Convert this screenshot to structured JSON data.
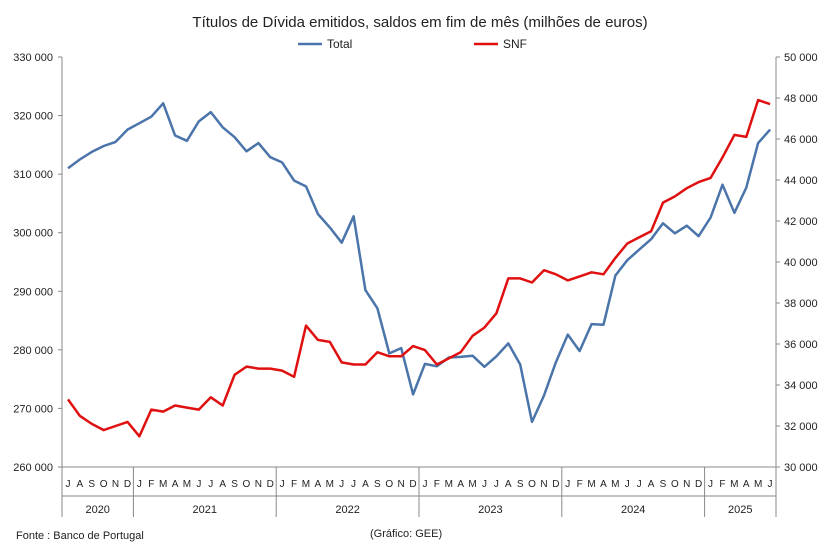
{
  "chart_data": {
    "type": "line",
    "title": "Títulos de Dívida emitidos, saldos em fim de mês  (milhões de euros)",
    "source": "Fonte : Banco de Portugal",
    "credit": "(Gráfico: GEE)",
    "left_axis": {
      "min": 260000,
      "max": 330000,
      "step": 10000,
      "tick_labels": [
        "260 000",
        "270 000",
        "280 000",
        "290 000",
        "300 000",
        "310 000",
        "320 000",
        "330 000"
      ]
    },
    "right_axis": {
      "min": 30000,
      "max": 50000,
      "step": 2000,
      "tick_labels": [
        "30 000",
        "32 000",
        "34 000",
        "36 000",
        "38 000",
        "40 000",
        "42 000",
        "44 000",
        "46 000",
        "48 000",
        "50 000"
      ]
    },
    "months": [
      "J",
      "A",
      "S",
      "O",
      "N",
      "D",
      "J",
      "F",
      "M",
      "A",
      "M",
      "J",
      "J",
      "A",
      "S",
      "O",
      "N",
      "D",
      "J",
      "F",
      "M",
      "A",
      "M",
      "J",
      "J",
      "A",
      "S",
      "O",
      "N",
      "D",
      "J",
      "F",
      "M",
      "A",
      "M",
      "J",
      "J",
      "A",
      "S",
      "O",
      "N",
      "D",
      "J",
      "F",
      "M",
      "A",
      "M",
      "J",
      "J",
      "A",
      "S",
      "O",
      "N",
      "D",
      "J",
      "F",
      "M",
      "A",
      "M",
      "J"
    ],
    "years": [
      {
        "label": "2020",
        "start": 0,
        "count": 6
      },
      {
        "label": "2021",
        "start": 6,
        "count": 12
      },
      {
        "label": "2022",
        "start": 18,
        "count": 12
      },
      {
        "label": "2023",
        "start": 30,
        "count": 12
      },
      {
        "label": "2024",
        "start": 42,
        "count": 12
      },
      {
        "label": "2025",
        "start": 54,
        "count": 6
      }
    ],
    "legend_position": "top-center",
    "series": [
      {
        "name": "Total",
        "axis": "left",
        "color": "#4a74aa",
        "values": [
          311000,
          312500,
          313800,
          314800,
          315500,
          317600,
          318700,
          319800,
          322100,
          316600,
          315700,
          319000,
          320600,
          318000,
          316300,
          313900,
          315300,
          312900,
          312000,
          308900,
          307900,
          303200,
          300900,
          298300,
          302800,
          290200,
          287100,
          279400,
          280300,
          272400,
          277600,
          277200,
          278700,
          278800,
          279000,
          277100,
          278900,
          281100,
          277500,
          267700,
          272200,
          277900,
          282600,
          279800,
          284400,
          284300,
          292700,
          295300,
          297100,
          298900,
          301600,
          299900,
          301200,
          299400,
          302600,
          308200,
          303400,
          307700,
          315300,
          317600
        ]
      },
      {
        "name": "SNF",
        "axis": "right",
        "color": "#e01010",
        "values": [
          33300,
          32500,
          32100,
          31800,
          32000,
          32200,
          31500,
          32800,
          32700,
          33000,
          32900,
          32800,
          33400,
          33000,
          34500,
          34900,
          34800,
          34800,
          34700,
          34400,
          36900,
          36200,
          36100,
          35100,
          35000,
          35000,
          35600,
          35400,
          35400,
          35900,
          35700,
          35000,
          35300,
          35600,
          36400,
          36800,
          37500,
          39200,
          39200,
          39000,
          39600,
          39400,
          39100,
          39300,
          39500,
          39400,
          40200,
          40900,
          41200,
          41500,
          42900,
          43200,
          43600,
          43900,
          44100,
          45100,
          46200,
          46100,
          47900,
          47700
        ]
      }
    ]
  }
}
